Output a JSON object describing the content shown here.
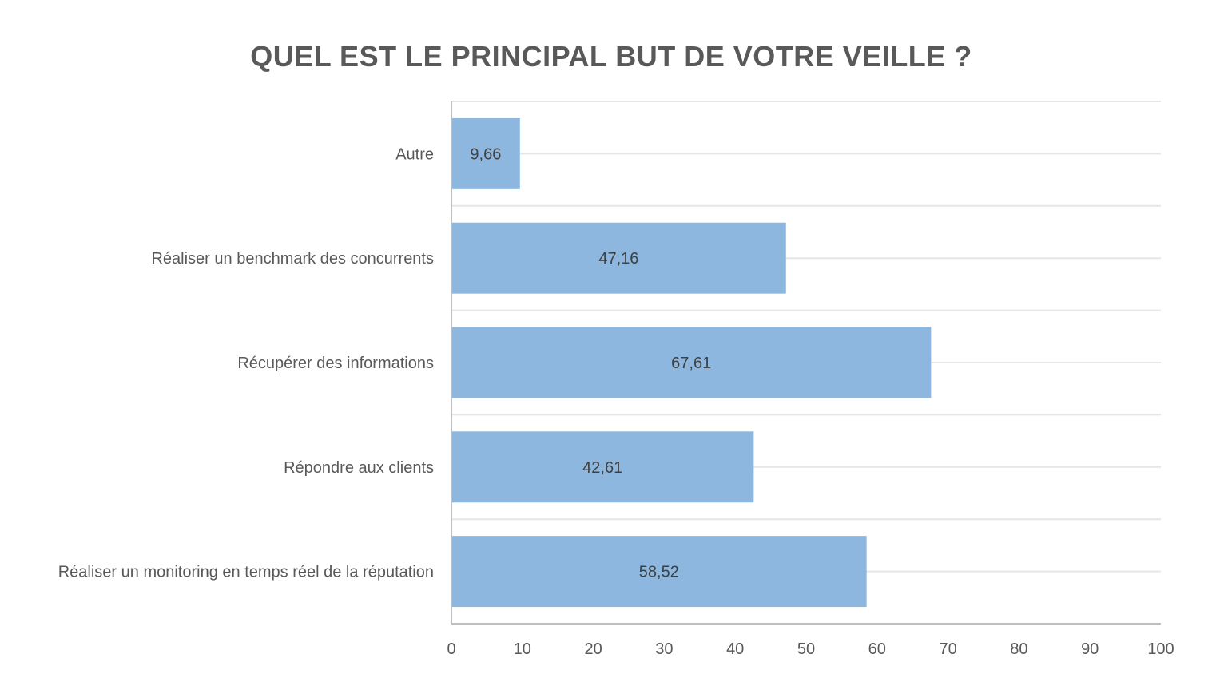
{
  "chart_data": {
    "type": "bar",
    "orientation": "horizontal",
    "title": "QUEL EST LE PRINCIPAL BUT DE VOTRE VEILLE ?",
    "categories": [
      "Autre",
      "Réaliser un benchmark des concurrents",
      "Récupérer des informations",
      "Répondre aux clients",
      "Réaliser un monitoring en temps réel de la réputation"
    ],
    "values": [
      9.66,
      47.16,
      67.61,
      42.61,
      58.52
    ],
    "data_labels": [
      "9,66",
      "47,16",
      "67,61",
      "42,61",
      "58,52"
    ],
    "xlim": [
      0,
      100
    ],
    "x_ticks": [
      "0",
      "10",
      "20",
      "30",
      "40",
      "50",
      "60",
      "70",
      "80",
      "90",
      "100"
    ],
    "xlabel": "",
    "ylabel": "",
    "grid": true,
    "legend": "none",
    "colors": {
      "bar": "#8db7de",
      "text": "#595959",
      "label": "#404040",
      "grid": "#e6e6e6",
      "axis": "#bfbfbf"
    }
  }
}
